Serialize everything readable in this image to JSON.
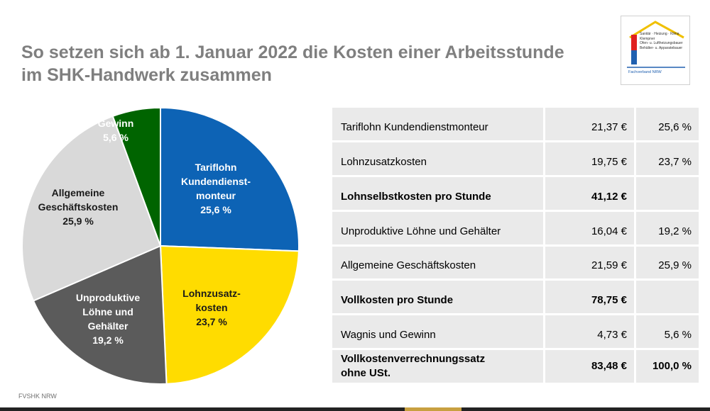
{
  "title_lines": [
    "So setzen sich ab 1. Januar 2022 die Kosten einer Arbeitsstunde",
    "im SHK-Handwerk zusammen"
  ],
  "logo": {
    "lines": [
      "Sanitär · Heizung · Klima",
      "Klempner",
      "Ofen- u. Luftheizungsbauer",
      "Behälter- u. Apparatebauer"
    ],
    "bottom": "Fachverband NRW"
  },
  "chart_data": {
    "type": "pie",
    "slices": [
      {
        "label": [
          "Tariflohn",
          "Kundendienst-",
          "monteur",
          "25,6 %"
        ],
        "value": 25.6,
        "color": "#0d63b5",
        "text_color": "#ffffff"
      },
      {
        "label": [
          "Lohnzusatz-",
          "kosten",
          "23,7 %"
        ],
        "value": 23.7,
        "color": "#ffdc00",
        "text_color": "#1a1a1a"
      },
      {
        "label": [
          "Unproduktive",
          "Löhne und",
          "Gehälter",
          "19,2 %"
        ],
        "value": 19.2,
        "color": "#5b5b5b",
        "text_color": "#ffffff"
      },
      {
        "label": [
          "Allgemeine",
          "Geschäftskosten",
          "25,9 %"
        ],
        "value": 25.9,
        "color": "#d9d9d9",
        "text_color": "#1a1a1a"
      },
      {
        "label": [
          "Gewinn",
          "5,6 %"
        ],
        "value": 5.6,
        "color": "#006400",
        "text_color": "#ffffff"
      }
    ]
  },
  "table": {
    "rows": [
      {
        "label": "Tariflohn Kundendienstmonteur",
        "amount": "21,37 €",
        "percent": "25,6 %",
        "bold": false
      },
      {
        "label": "Lohnzusatzkosten",
        "amount": "19,75 €",
        "percent": "23,7 %",
        "bold": false
      },
      {
        "label": "Lohnselbstkosten pro Stunde",
        "amount": "41,12 €",
        "percent": "",
        "bold": true
      },
      {
        "label": "Unproduktive Löhne und Gehälter",
        "amount": "16,04 €",
        "percent": "19,2 %",
        "bold": false
      },
      {
        "label": "Allgemeine Geschäftskosten",
        "amount": "21,59 €",
        "percent": "25,9 %",
        "bold": false
      },
      {
        "label": "Vollkosten pro Stunde",
        "amount": "78,75 €",
        "percent": "",
        "bold": true
      },
      {
        "label": "Wagnis und Gewinn",
        "amount": "4,73 €",
        "percent": "5,6 %",
        "bold": false
      },
      {
        "label": "Vollkostenverrechnungssatz\nohne USt.",
        "amount": "83,48 €",
        "percent": "100,0 %",
        "bold": true
      }
    ]
  },
  "footer": "FVSHK NRW"
}
